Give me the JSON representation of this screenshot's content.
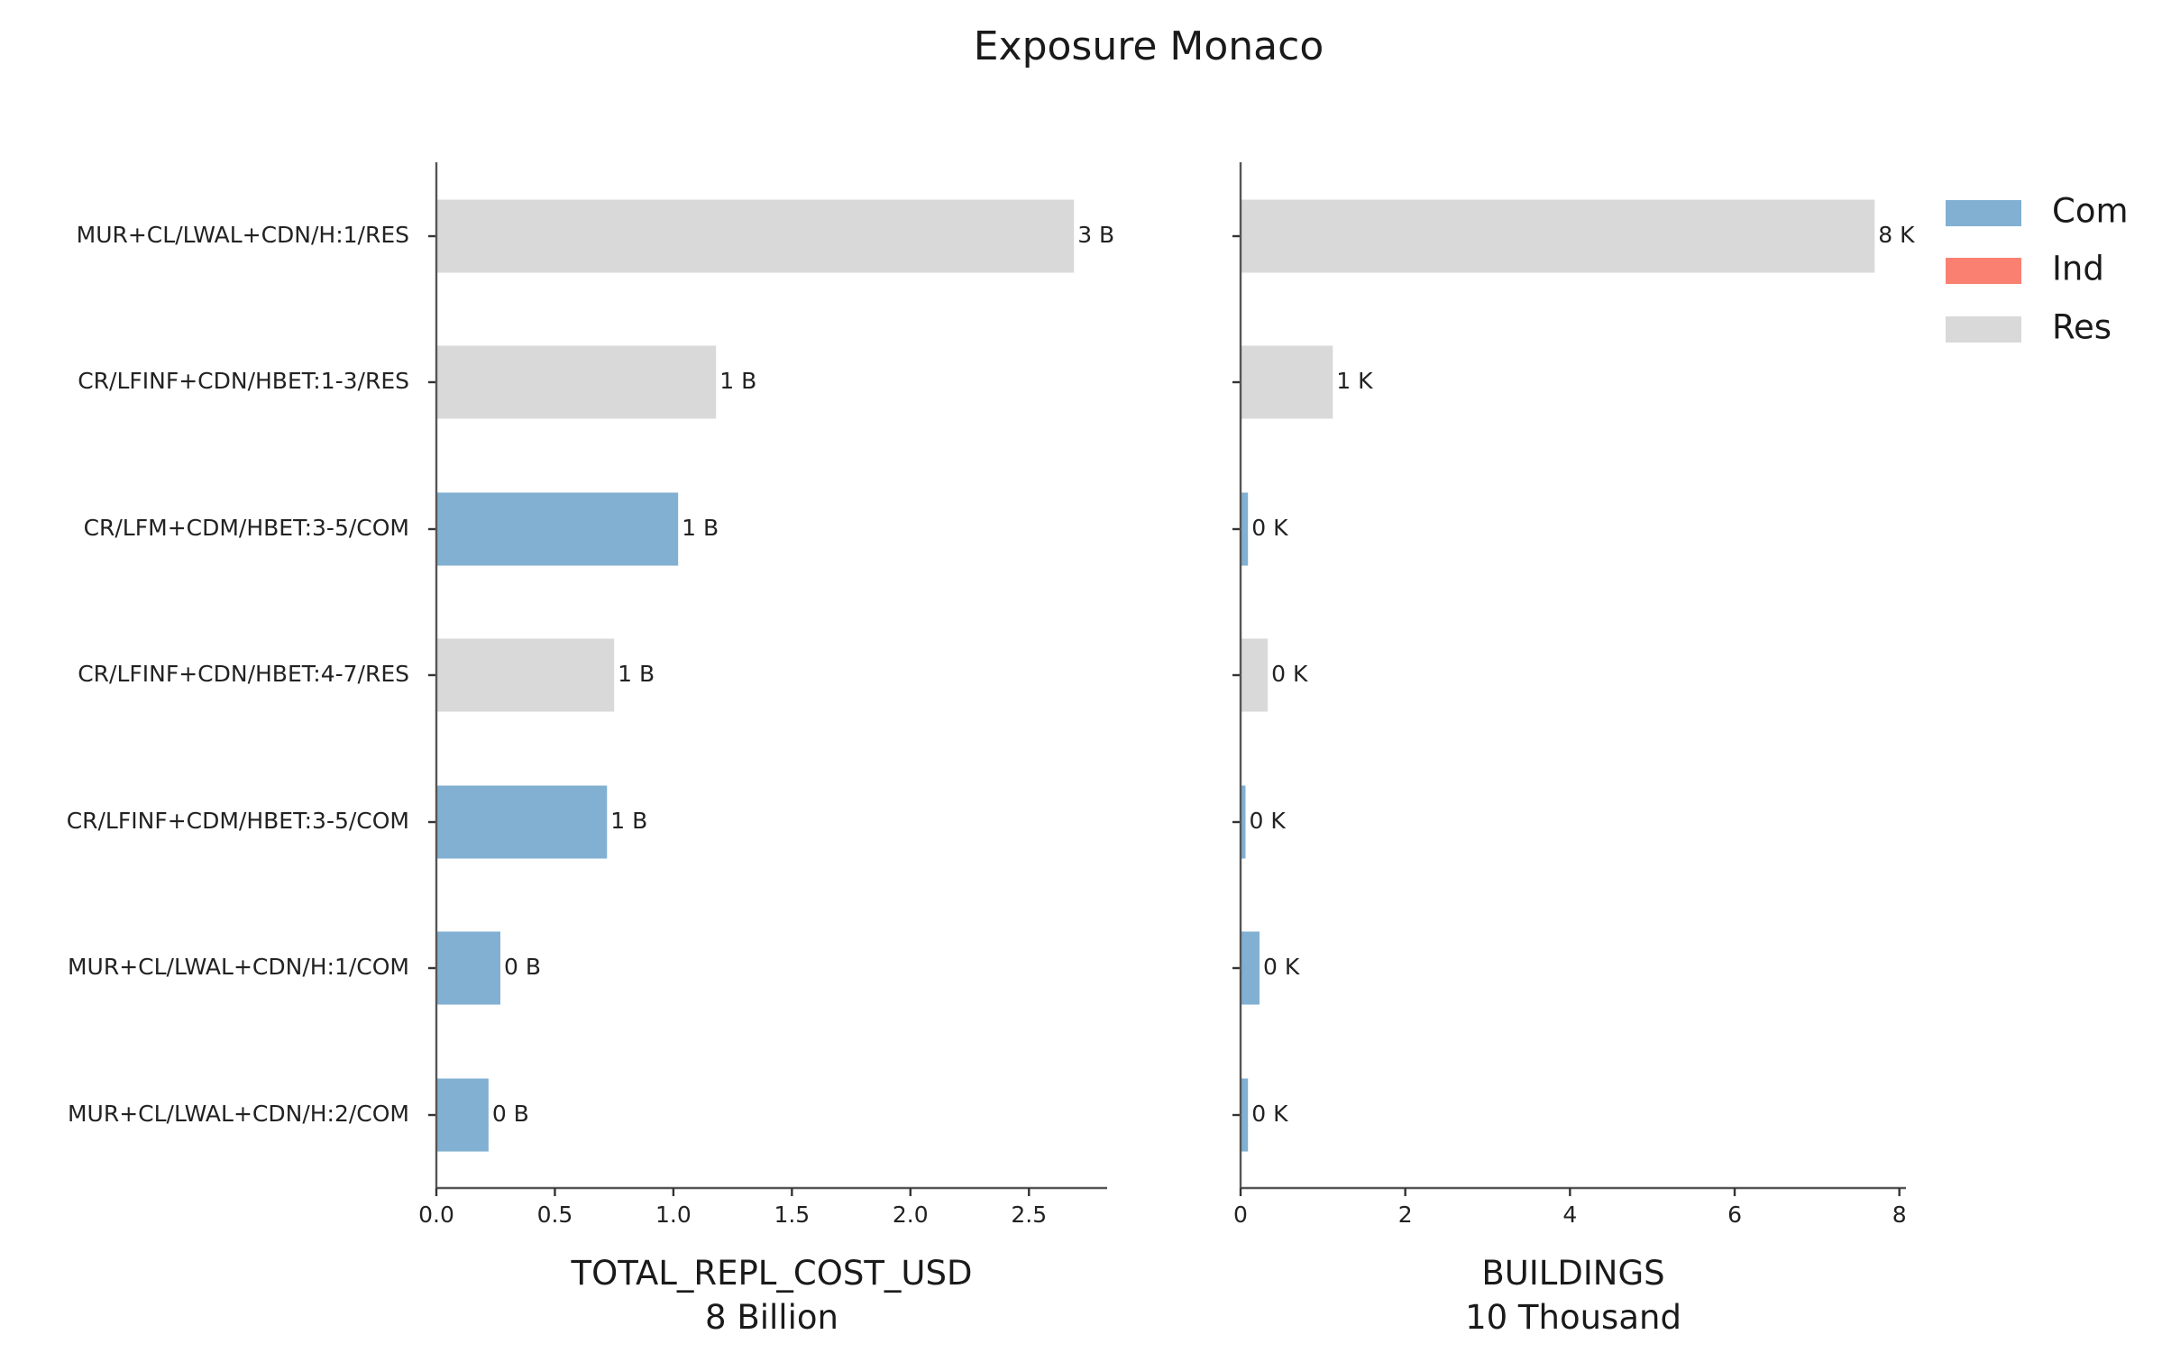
{
  "title": "Exposure Monaco",
  "colors": {
    "Com": "#82b0d2",
    "Ind": "#fa8072",
    "Res": "#d9d9d9"
  },
  "legend": [
    {
      "name": "Com",
      "color": "#82b0d2"
    },
    {
      "name": "Ind",
      "color": "#fa8072"
    },
    {
      "name": "Res",
      "color": "#d9d9d9"
    }
  ],
  "chart_data": [
    {
      "type": "bar",
      "orientation": "horizontal",
      "categories": [
        "MUR+CL/LWAL+CDN/H:1/RES",
        "CR/LFINF+CDN/HBET:1-3/RES",
        "CR/LFM+CDM/HBET:3-5/COM",
        "CR/LFINF+CDN/HBET:4-7/RES",
        "CR/LFINF+CDM/HBET:3-5/COM",
        "MUR+CL/LWAL+CDN/H:1/COM",
        "MUR+CL/LWAL+CDN/H:2/COM"
      ],
      "values": [
        2.69,
        1.18,
        1.02,
        0.75,
        0.72,
        0.27,
        0.22
      ],
      "occupancy": [
        "Res",
        "Res",
        "Com",
        "Res",
        "Com",
        "Com",
        "Com"
      ],
      "data_labels": [
        "3 B",
        "1 B",
        "1 B",
        "1 B",
        "1 B",
        "0 B",
        "0 B"
      ],
      "xlabel": "TOTAL_REPL_COST_USD",
      "xlabel_sub": "8 Billion",
      "xlim": [
        0,
        2.83
      ],
      "xticks": [
        0.0,
        0.5,
        1.0,
        1.5,
        2.0,
        2.5
      ],
      "xtick_labels": [
        "0.0",
        "0.5",
        "1.0",
        "1.5",
        "2.0",
        "2.5"
      ]
    },
    {
      "type": "bar",
      "orientation": "horizontal",
      "categories": [
        "MUR+CL/LWAL+CDN/H:1/RES",
        "CR/LFINF+CDN/HBET:1-3/RES",
        "CR/LFM+CDM/HBET:3-5/COM",
        "CR/LFINF+CDN/HBET:4-7/RES",
        "CR/LFINF+CDM/HBET:3-5/COM",
        "MUR+CL/LWAL+CDN/H:1/COM",
        "MUR+CL/LWAL+CDN/H:2/COM"
      ],
      "values": [
        7.7,
        1.12,
        0.09,
        0.33,
        0.06,
        0.23,
        0.09
      ],
      "occupancy": [
        "Res",
        "Res",
        "Com",
        "Res",
        "Com",
        "Com",
        "Com"
      ],
      "data_labels": [
        "8 K",
        "1 K",
        "0 K",
        "0 K",
        "0 K",
        "0 K",
        "0 K"
      ],
      "xlabel": "BUILDINGS",
      "xlabel_sub": "10 Thousand",
      "xlim": [
        0,
        8.08
      ],
      "xticks": [
        0,
        2,
        4,
        6,
        8
      ],
      "xtick_labels": [
        "0",
        "2",
        "4",
        "6",
        "8"
      ]
    }
  ]
}
